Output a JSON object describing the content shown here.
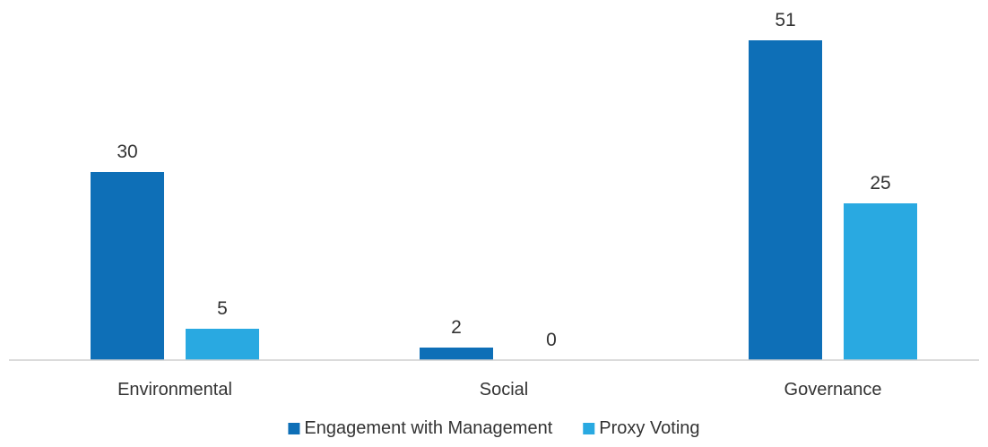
{
  "chart_data": {
    "type": "bar",
    "categories": [
      "Environmental",
      "Social",
      "Governance"
    ],
    "series": [
      {
        "name": "Engagement with Management",
        "values": [
          30,
          2,
          51
        ],
        "color": "#0E6FB7"
      },
      {
        "name": "Proxy Voting",
        "values": [
          5,
          0,
          25
        ],
        "color": "#29A9E1"
      }
    ],
    "ylim": [
      0,
      55
    ],
    "grid": false,
    "legend_position": "bottom-center",
    "data_labels": true
  }
}
